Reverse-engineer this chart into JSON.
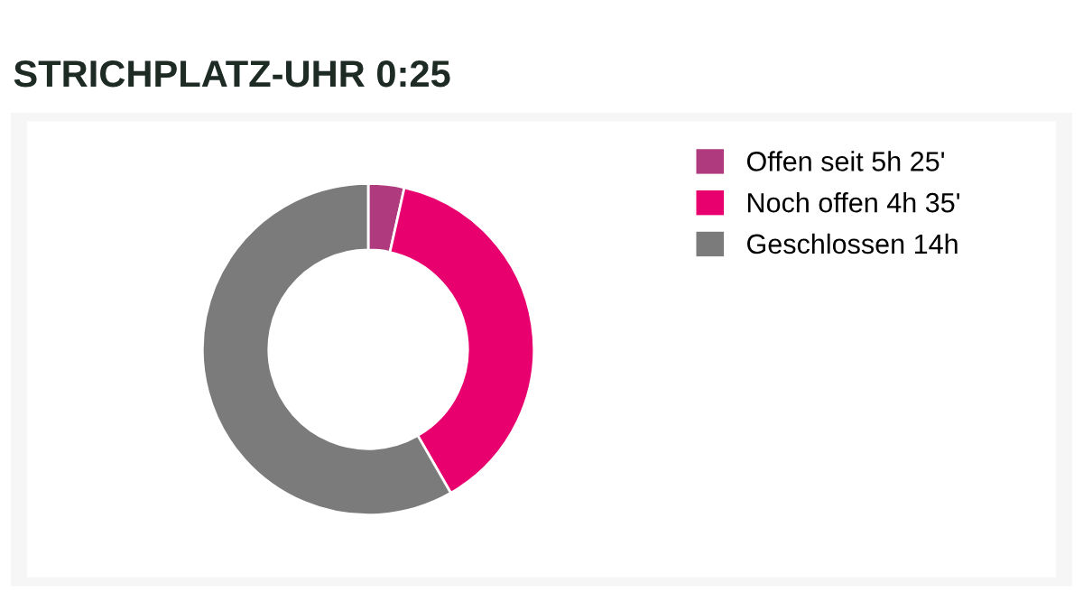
{
  "chart_data": {
    "type": "donut",
    "title": "STRICHPLATZ-UHR 0:25",
    "categories": [
      "Offen seit 5h 25'",
      "Noch offen 4h 35'",
      "Geschlossen 14h"
    ],
    "values": [
      3.5,
      38.2,
      58.3
    ],
    "colors": [
      "#b03a7e",
      "#e8006f",
      "#7b7b7b"
    ],
    "legend": "right"
  }
}
